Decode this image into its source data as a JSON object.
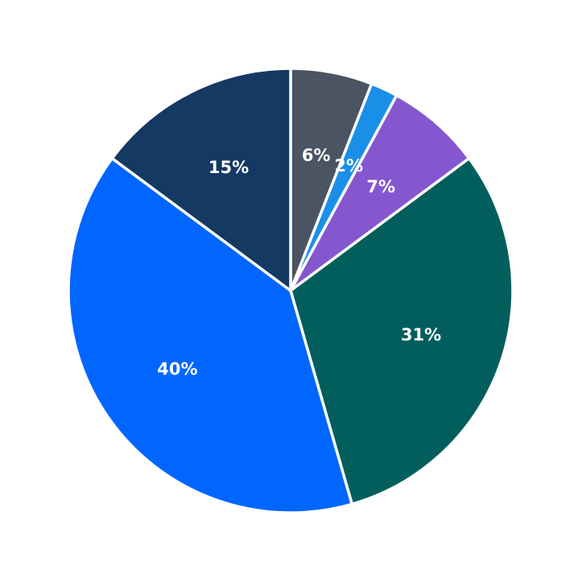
{
  "chart_data": {
    "type": "pie",
    "title": "",
    "start_angle": "12 o'clock",
    "direction": "clockwise",
    "slices": [
      {
        "value": 6,
        "label": "6%",
        "color": "#4a5462"
      },
      {
        "value": 2,
        "label": "2%",
        "color": "#1a8fe8"
      },
      {
        "value": 7,
        "label": "7%",
        "color": "#8557cf"
      },
      {
        "value": 31,
        "label": "31%",
        "color": "#025e5c"
      },
      {
        "value": 40,
        "label": "40%",
        "color": "#0066ff"
      },
      {
        "value": 15,
        "label": "15%",
        "color": "#143962"
      }
    ]
  }
}
